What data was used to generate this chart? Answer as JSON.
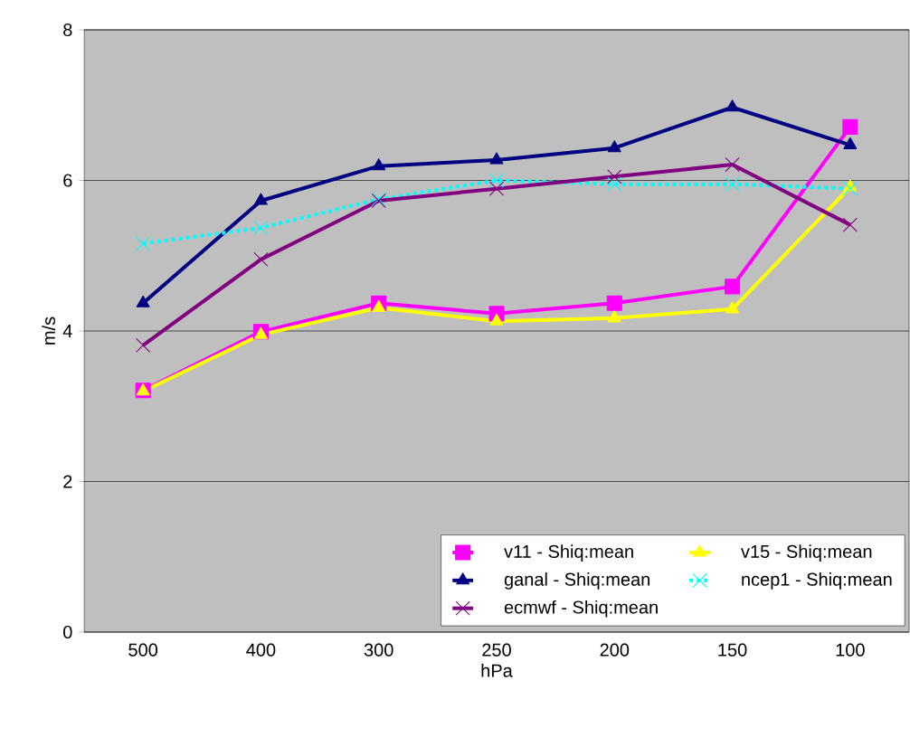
{
  "chart_data": {
    "type": "line",
    "xlabel": "hPa",
    "ylabel": "m/s",
    "categories": [
      "500",
      "400",
      "300",
      "250",
      "200",
      "150",
      "100"
    ],
    "ylim": [
      0,
      8
    ],
    "yticks": [
      0,
      2,
      4,
      6,
      8
    ],
    "grid": "y",
    "legend": "bottom right",
    "series": [
      {
        "name": "v11 - Shiq:mean",
        "color": "#ff00ff",
        "marker": "square",
        "values": [
          3.21,
          3.99,
          4.37,
          4.23,
          4.37,
          4.59,
          6.71
        ]
      },
      {
        "name": "v15 - Shiq:mean",
        "color": "#ffff00",
        "marker": "triangle",
        "values": [
          3.2,
          3.95,
          4.31,
          4.13,
          4.17,
          4.29,
          5.91
        ]
      },
      {
        "name": "ganal - Shiq:mean",
        "color": "#000080",
        "marker": "triangle",
        "values": [
          4.37,
          5.73,
          6.19,
          6.27,
          6.43,
          6.97,
          6.47
        ]
      },
      {
        "name": "ncep1 - Shiq:mean",
        "color": "#00ffff",
        "marker": "cross",
        "line_style": "dashed",
        "values": [
          5.16,
          5.37,
          5.75,
          6.0,
          5.95,
          5.95,
          5.89
        ]
      },
      {
        "name": "ecmwf - Shiq:mean",
        "color": "#800080",
        "marker": "cross",
        "values": [
          3.81,
          4.95,
          5.73,
          5.89,
          6.05,
          6.21,
          5.41
        ]
      }
    ]
  }
}
